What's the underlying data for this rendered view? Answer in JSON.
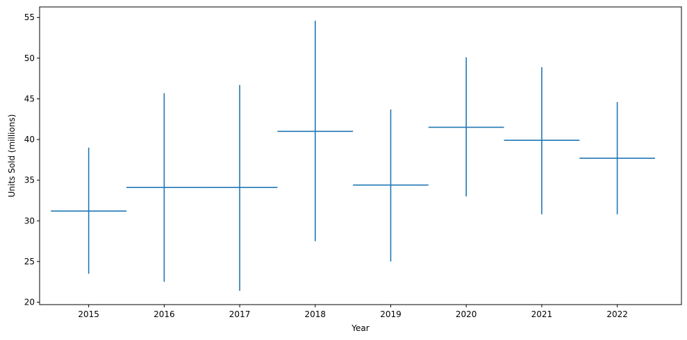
{
  "chart_data": {
    "type": "scatter",
    "marker": "error-cross",
    "title": "",
    "xlabel": "Year",
    "ylabel": "Units Sold (millions)",
    "xlim": [
      2014.35,
      2022.85
    ],
    "ylim": [
      19.7,
      56.3
    ],
    "x_ticks": [
      "2015",
      "2016",
      "2017",
      "2018",
      "2019",
      "2020",
      "2021",
      "2022"
    ],
    "y_ticks": [
      20,
      25,
      30,
      35,
      40,
      45,
      50,
      55
    ],
    "grid": false,
    "color": "#1f77b4",
    "x_error": 0.5,
    "series": [
      {
        "x": [
          2015,
          2016,
          2017,
          2018,
          2019,
          2020,
          2021,
          2022
        ],
        "y": [
          31.2,
          34.1,
          34.1,
          41.0,
          34.4,
          41.5,
          39.9,
          37.7
        ],
        "y_low": [
          23.5,
          22.5,
          21.4,
          27.5,
          25.0,
          33.0,
          30.8,
          30.8
        ],
        "y_high": [
          39.0,
          45.7,
          46.7,
          54.6,
          43.7,
          50.1,
          48.9,
          44.6
        ]
      }
    ]
  }
}
